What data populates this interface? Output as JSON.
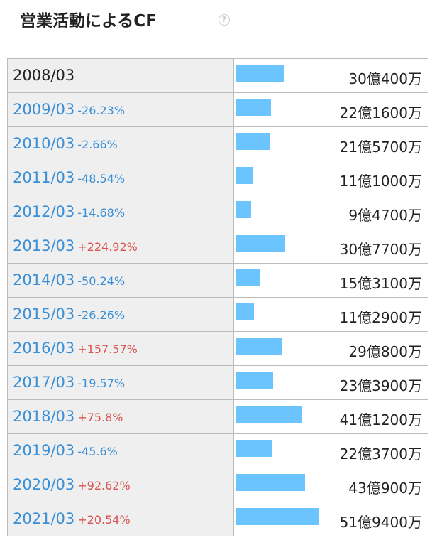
{
  "title": "営業活動によるCF",
  "help_icon": "?",
  "rows": [
    {
      "year": "2008/03",
      "amount": "30億400万"
    },
    {
      "year": "2009/03",
      "change": "-26.23%",
      "amount": "22億1600万"
    },
    {
      "year": "2010/03",
      "change": "-2.66%",
      "amount": "21億5700万"
    },
    {
      "year": "2011/03",
      "change": "-48.54%",
      "amount": "11億1000万"
    },
    {
      "year": "2012/03",
      "change": "-14.68%",
      "amount": "9億4700万"
    },
    {
      "year": "2013/03",
      "change": "+224.92%",
      "amount": "30億7700万"
    },
    {
      "year": "2014/03",
      "change": "-50.24%",
      "amount": "15億3100万"
    },
    {
      "year": "2015/03",
      "change": "-26.26%",
      "amount": "11億2900万"
    },
    {
      "year": "2016/03",
      "change": "+157.57%",
      "amount": "29億800万"
    },
    {
      "year": "2017/03",
      "change": "-19.57%",
      "amount": "23億3900万"
    },
    {
      "year": "2018/03",
      "change": "+75.8%",
      "amount": "41億1200万"
    },
    {
      "year": "2019/03",
      "change": "-45.6%",
      "amount": "22億3700万"
    },
    {
      "year": "2020/03",
      "change": "+92.62%",
      "amount": "43億900万"
    },
    {
      "year": "2021/03",
      "change": "+20.54%",
      "amount": "51億9400万"
    }
  ]
}
